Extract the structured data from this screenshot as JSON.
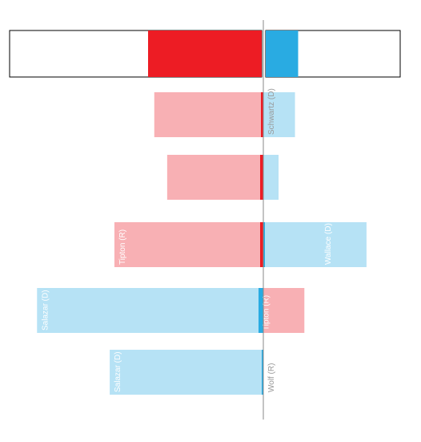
{
  "chart_data": {
    "type": "bar",
    "orientation": "diverging-horizontal",
    "colors": {
      "R": "#ed1c24",
      "D": "#29abe2",
      "R_light": "#f8b0b4",
      "D_light": "#b6e2f5",
      "label_dark": "#999999",
      "label_light": "#ffffff",
      "axis": "#888888"
    },
    "summary": {
      "R": 100,
      "D": 27
    },
    "rows": [
      {
        "left": {
          "label": "",
          "party": "R",
          "value": 93,
          "bar": 3
        },
        "right": {
          "label": "Schwartz (D)",
          "party": "D",
          "value": 27,
          "bar": 0
        }
      },
      {
        "left": {
          "label": "",
          "party": "R",
          "value": 82,
          "bar": 4
        },
        "right": {
          "label": "",
          "party": "D",
          "value": 13,
          "bar": 0
        }
      },
      {
        "left": {
          "label": "Tipton (R)",
          "party": "R",
          "value": 127,
          "bar": 4
        },
        "right": {
          "label": "Wallace (D)",
          "party": "D",
          "value": 88,
          "bar": 2
        }
      },
      {
        "left": {
          "label": "Salazar (D)",
          "party": "D",
          "value": 193,
          "bar": 6
        },
        "right": {
          "label": "Tipton (R)",
          "party": "R",
          "value": 35,
          "bar": 0
        }
      },
      {
        "left": {
          "label": "Salazar (D)",
          "party": "D",
          "value": 131,
          "bar": 2
        },
        "right": {
          "label": "Wolf (R)",
          "party": "R",
          "value": 0,
          "bar": 0
        }
      }
    ]
  }
}
